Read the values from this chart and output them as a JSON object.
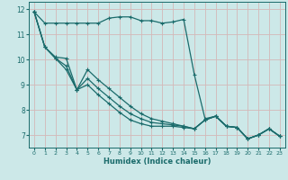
{
  "xlabel": "Humidex (Indice chaleur)",
  "bg_color": "#cce8e8",
  "grid_color": "#aed0d0",
  "line_color": "#1a6b6b",
  "xlim": [
    -0.5,
    23.5
  ],
  "ylim": [
    6.5,
    12.3
  ],
  "yticks": [
    7,
    8,
    9,
    10,
    11,
    12
  ],
  "xticks": [
    0,
    1,
    2,
    3,
    4,
    5,
    6,
    7,
    8,
    9,
    10,
    11,
    12,
    13,
    14,
    15,
    16,
    17,
    18,
    19,
    20,
    21,
    22,
    23
  ],
  "line1_x": [
    0,
    1,
    2,
    3,
    4,
    5,
    6,
    7,
    8,
    9,
    10,
    11,
    12,
    13,
    14,
    15,
    16,
    17,
    18,
    19,
    20,
    21,
    22,
    23
  ],
  "line1_y": [
    11.9,
    11.45,
    11.45,
    11.45,
    11.45,
    11.45,
    11.45,
    11.65,
    11.7,
    11.7,
    11.55,
    11.55,
    11.45,
    11.5,
    11.6,
    9.4,
    7.65,
    7.75,
    7.35,
    7.3,
    6.85,
    7.0,
    7.25,
    6.95
  ],
  "line2_x": [
    0,
    1,
    2,
    3,
    4,
    5,
    6,
    7,
    8,
    9,
    10,
    11,
    12,
    13,
    14,
    15,
    16,
    17,
    18,
    19,
    20,
    21,
    22,
    23
  ],
  "line2_y": [
    11.9,
    10.5,
    10.1,
    10.05,
    8.8,
    9.6,
    9.2,
    8.85,
    8.5,
    8.15,
    7.85,
    7.65,
    7.55,
    7.45,
    7.35,
    7.25,
    7.6,
    7.75,
    7.35,
    7.3,
    6.85,
    7.0,
    7.25,
    6.95
  ],
  "line3_x": [
    0,
    1,
    2,
    3,
    4,
    5,
    6,
    7,
    8,
    9,
    10,
    11,
    12,
    13,
    14,
    15,
    16,
    17,
    18,
    19,
    20,
    21,
    22,
    23
  ],
  "line3_y": [
    11.9,
    10.5,
    10.05,
    9.75,
    8.8,
    9.25,
    8.85,
    8.5,
    8.15,
    7.85,
    7.65,
    7.5,
    7.45,
    7.4,
    7.35,
    7.25,
    7.6,
    7.75,
    7.35,
    7.3,
    6.85,
    7.0,
    7.25,
    6.95
  ],
  "line4_x": [
    0,
    1,
    2,
    3,
    4,
    5,
    6,
    7,
    8,
    9,
    10,
    11,
    12,
    13,
    14,
    15,
    16,
    17,
    18,
    19,
    20,
    21,
    22,
    23
  ],
  "line4_y": [
    11.9,
    10.5,
    10.05,
    9.6,
    8.8,
    9.0,
    8.6,
    8.25,
    7.9,
    7.6,
    7.45,
    7.35,
    7.35,
    7.35,
    7.3,
    7.25,
    7.6,
    7.75,
    7.35,
    7.3,
    6.85,
    7.0,
    7.25,
    6.95
  ]
}
